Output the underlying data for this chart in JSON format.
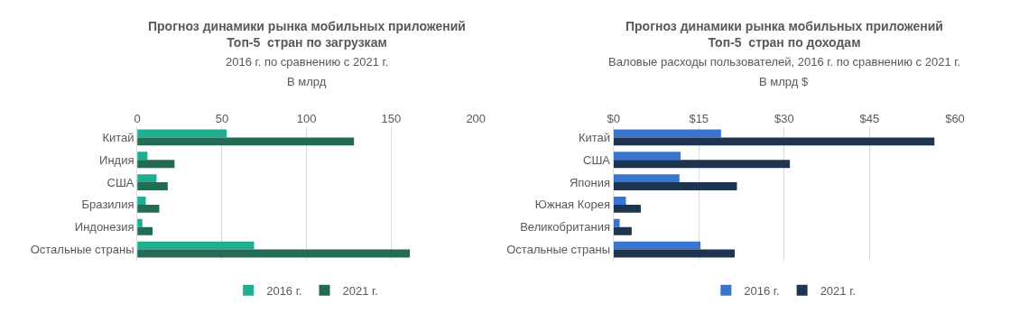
{
  "chart_data": [
    {
      "type": "bar",
      "orientation": "horizontal",
      "title": "Прогноз динамики рынка мобильных приложений\nТоп-5  стран по загрузкам",
      "subtitle": "2016 г. по сравнению с 2021 г.",
      "xlabel": "В млрд",
      "categories": [
        "Китай",
        "Индия",
        "США",
        "Бразилия",
        "Индонезия",
        "Остальные страны"
      ],
      "series": [
        {
          "name": "2016 г.",
          "color": "#1fae8f",
          "values": [
            52.8,
            6,
            11.4,
            5,
            3,
            69
          ]
        },
        {
          "name": "2021 г.",
          "color": "#236b55",
          "values": [
            128,
            22,
            18,
            13,
            9,
            161
          ]
        }
      ],
      "xlim": [
        0,
        200
      ],
      "xticks": [
        0,
        50,
        100,
        150,
        200
      ],
      "grid": "x",
      "legend": "bottom"
    },
    {
      "type": "bar",
      "orientation": "horizontal",
      "title": "Прогноз динамики рынка мобильных приложений\nТоп-5  стран по доходам",
      "subtitle": "Валовые расходы пользователей, 2016 г. по сравнению с 2021 г.",
      "xlabel": "В млрд $",
      "categories": [
        "Китай",
        "США",
        "Япония",
        "Южная Корея",
        "Великобритания",
        "Остальные страны"
      ],
      "series": [
        {
          "name": "2016 г.",
          "color": "#3a76cf",
          "values": [
            18.9,
            11.8,
            11.6,
            2.2,
            1.1,
            15.3
          ]
        },
        {
          "name": "2021 г.",
          "color": "#1d3550",
          "values": [
            56.4,
            31.0,
            21.7,
            4.8,
            3.2,
            21.3
          ]
        }
      ],
      "xlim": [
        0,
        60
      ],
      "xticks": [
        {
          "value": 0,
          "label": "$0"
        },
        {
          "value": 15,
          "label": "$15"
        },
        {
          "value": 30,
          "label": "$30"
        },
        {
          "value": 45,
          "label": "$45"
        },
        {
          "value": 60,
          "label": "$60"
        }
      ],
      "grid": "x",
      "legend": "bottom"
    }
  ]
}
